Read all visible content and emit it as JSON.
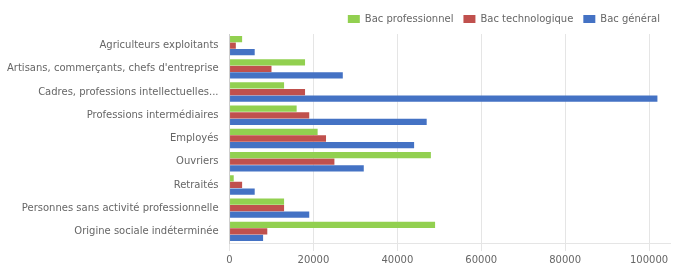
{
  "chart_data": {
    "type": "bar",
    "orientation": "horizontal",
    "categories": [
      "Agriculteurs exploitants",
      "Artisans, commerçants, chefs d'entreprise",
      "Cadres, professions intellectuelles...",
      "Professions intermédiaires",
      "Employés",
      "Ouvriers",
      "Retraités",
      "Personnes sans activité professionnelle",
      "Origine sociale indéterminée"
    ],
    "series": [
      {
        "name": "Bac professionnel",
        "color": "#92D050",
        "values": [
          3000,
          18000,
          13000,
          16000,
          21000,
          48000,
          1000,
          13000,
          49000
        ]
      },
      {
        "name": "Bac technologique",
        "color": "#C0504D",
        "values": [
          1500,
          10000,
          18000,
          19000,
          23000,
          25000,
          3000,
          13000,
          9000
        ]
      },
      {
        "name": "Bac général",
        "color": "#4472C4",
        "values": [
          6000,
          27000,
          102000,
          47000,
          44000,
          32000,
          6000,
          19000,
          8000
        ]
      }
    ],
    "xlim": [
      0,
      105000
    ],
    "xticks": [
      0,
      20000,
      40000,
      60000,
      80000,
      100000
    ],
    "grid": true,
    "legend": "upper right"
  }
}
